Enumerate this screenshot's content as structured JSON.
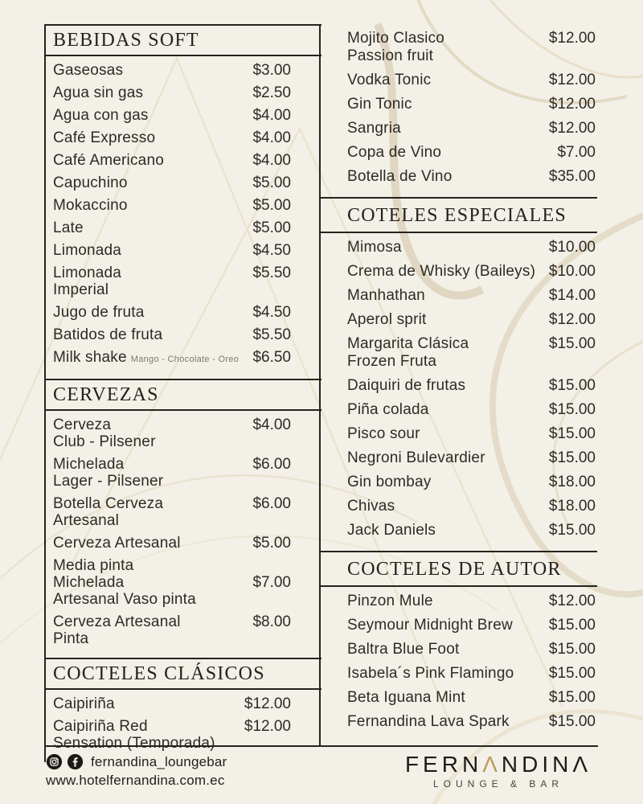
{
  "page": {
    "background_color": "#f3f0e8",
    "line_color": "#24231f",
    "accent_gold": "#b9995d"
  },
  "menu": {
    "left": {
      "sections": [
        {
          "title": "BEBIDAS SOFT",
          "items": [
            {
              "name": "Gaseosas",
              "price": "$3.00"
            },
            {
              "name": "Agua sin gas",
              "price": "$2.50"
            },
            {
              "name": "Agua con gas",
              "price": "$4.00"
            },
            {
              "name": "Café Expresso",
              "price": "$4.00"
            },
            {
              "name": "Café Americano",
              "price": "$4.00"
            },
            {
              "name": "Capuchino",
              "price": "$5.00"
            },
            {
              "name": "Mokaccino",
              "price": "$5.00"
            },
            {
              "name": "Late",
              "price": "$5.00"
            },
            {
              "name": "Limonada",
              "price": "$4.50"
            },
            {
              "name": "Limonada\nImperial",
              "price": "$5.50"
            },
            {
              "name": "Jugo de fruta",
              "price": "$4.50"
            },
            {
              "name": "Batidos de fruta",
              "price": "$5.50"
            },
            {
              "name": "Milk shake",
              "note": "Mango - Chocolate - Oreo",
              "price": "$6.50"
            }
          ]
        },
        {
          "title": "CERVEZAS",
          "items": [
            {
              "name": "Cerveza\nClub - Pilsener",
              "price": "$4.00"
            },
            {
              "name": "Michelada\nLager - Pilsener",
              "price": "$6.00"
            },
            {
              "name": "Botella Cerveza\nArtesanal",
              "price": "$6.00"
            },
            {
              "name": "Cerveza Artesanal",
              "price": "$5.00"
            },
            {
              "name": "Media pinta\nMichelada\nArtesanal Vaso pinta",
              "price": "$7.00",
              "valign": "center"
            },
            {
              "name": "Cerveza Artesanal\nPinta",
              "price": "$8.00"
            }
          ]
        },
        {
          "title": "COCTELES CLÁSICOS",
          "items": [
            {
              "name": "Caipiriña",
              "price": "$12.00"
            },
            {
              "name": "Caipiriña Red\nSensation (Temporada)",
              "price": "$12.00"
            }
          ]
        }
      ]
    },
    "right": {
      "sections": [
        {
          "title": "",
          "items": [
            {
              "name": "Mojito Clasico\nPassion fruit",
              "price": "$12.00"
            },
            {
              "name": "Vodka Tonic",
              "price": "$12.00"
            },
            {
              "name": "Gin Tonic",
              "price": "$12.00"
            },
            {
              "name": "Sangria",
              "price": "$12.00"
            },
            {
              "name": "Copa de Vino",
              "price": "$7.00"
            },
            {
              "name": "Botella de Vino",
              "price": "$35.00"
            }
          ]
        },
        {
          "title": "COTELES ESPECIALES",
          "items": [
            {
              "name": "Mimosa",
              "price": "$10.00"
            },
            {
              "name": "Crema de Whisky (Baileys)",
              "price": "$10.00"
            },
            {
              "name": "Manhathan",
              "price": "$14.00"
            },
            {
              "name": "Aperol sprit",
              "price": "$12.00"
            },
            {
              "name": "Margarita Clásica\nFrozen Fruta",
              "price": "$15.00"
            },
            {
              "name": "Daiquiri de frutas",
              "price": "$15.00"
            },
            {
              "name": "Piña colada",
              "price": "$15.00"
            },
            {
              "name": "Pisco sour",
              "price": "$15.00"
            },
            {
              "name": "Negroni Bulevardier",
              "price": "$15.00"
            },
            {
              "name": "Gin bombay",
              "price": "$18.00"
            },
            {
              "name": "Chivas",
              "price": "$18.00"
            },
            {
              "name": "Jack Daniels",
              "price": "$15.00"
            }
          ]
        },
        {
          "title": "COCTELES DE AUTOR",
          "items": [
            {
              "name": "Pinzon Mule",
              "price": "$12.00"
            },
            {
              "name": "Seymour Midnight Brew",
              "price": "$15.00"
            },
            {
              "name": "Baltra Blue Foot",
              "price": "$15.00"
            },
            {
              "name": "Isabela´s Pink Flamingo",
              "price": "$15.00"
            },
            {
              "name": "Beta Iguana Mint",
              "price": "$15.00"
            },
            {
              "name": "Fernandina Lava Spark",
              "price": "$15.00"
            }
          ]
        }
      ]
    }
  },
  "footer": {
    "social_handle": "fernandina_loungebar",
    "website": "www.hotelfernandina.com.ec",
    "logo": {
      "prefix": "FERN",
      "accent": "Λ",
      "middle": "NDIN",
      "end": "Λ",
      "subtitle": "LOUNGE & BAR"
    }
  }
}
